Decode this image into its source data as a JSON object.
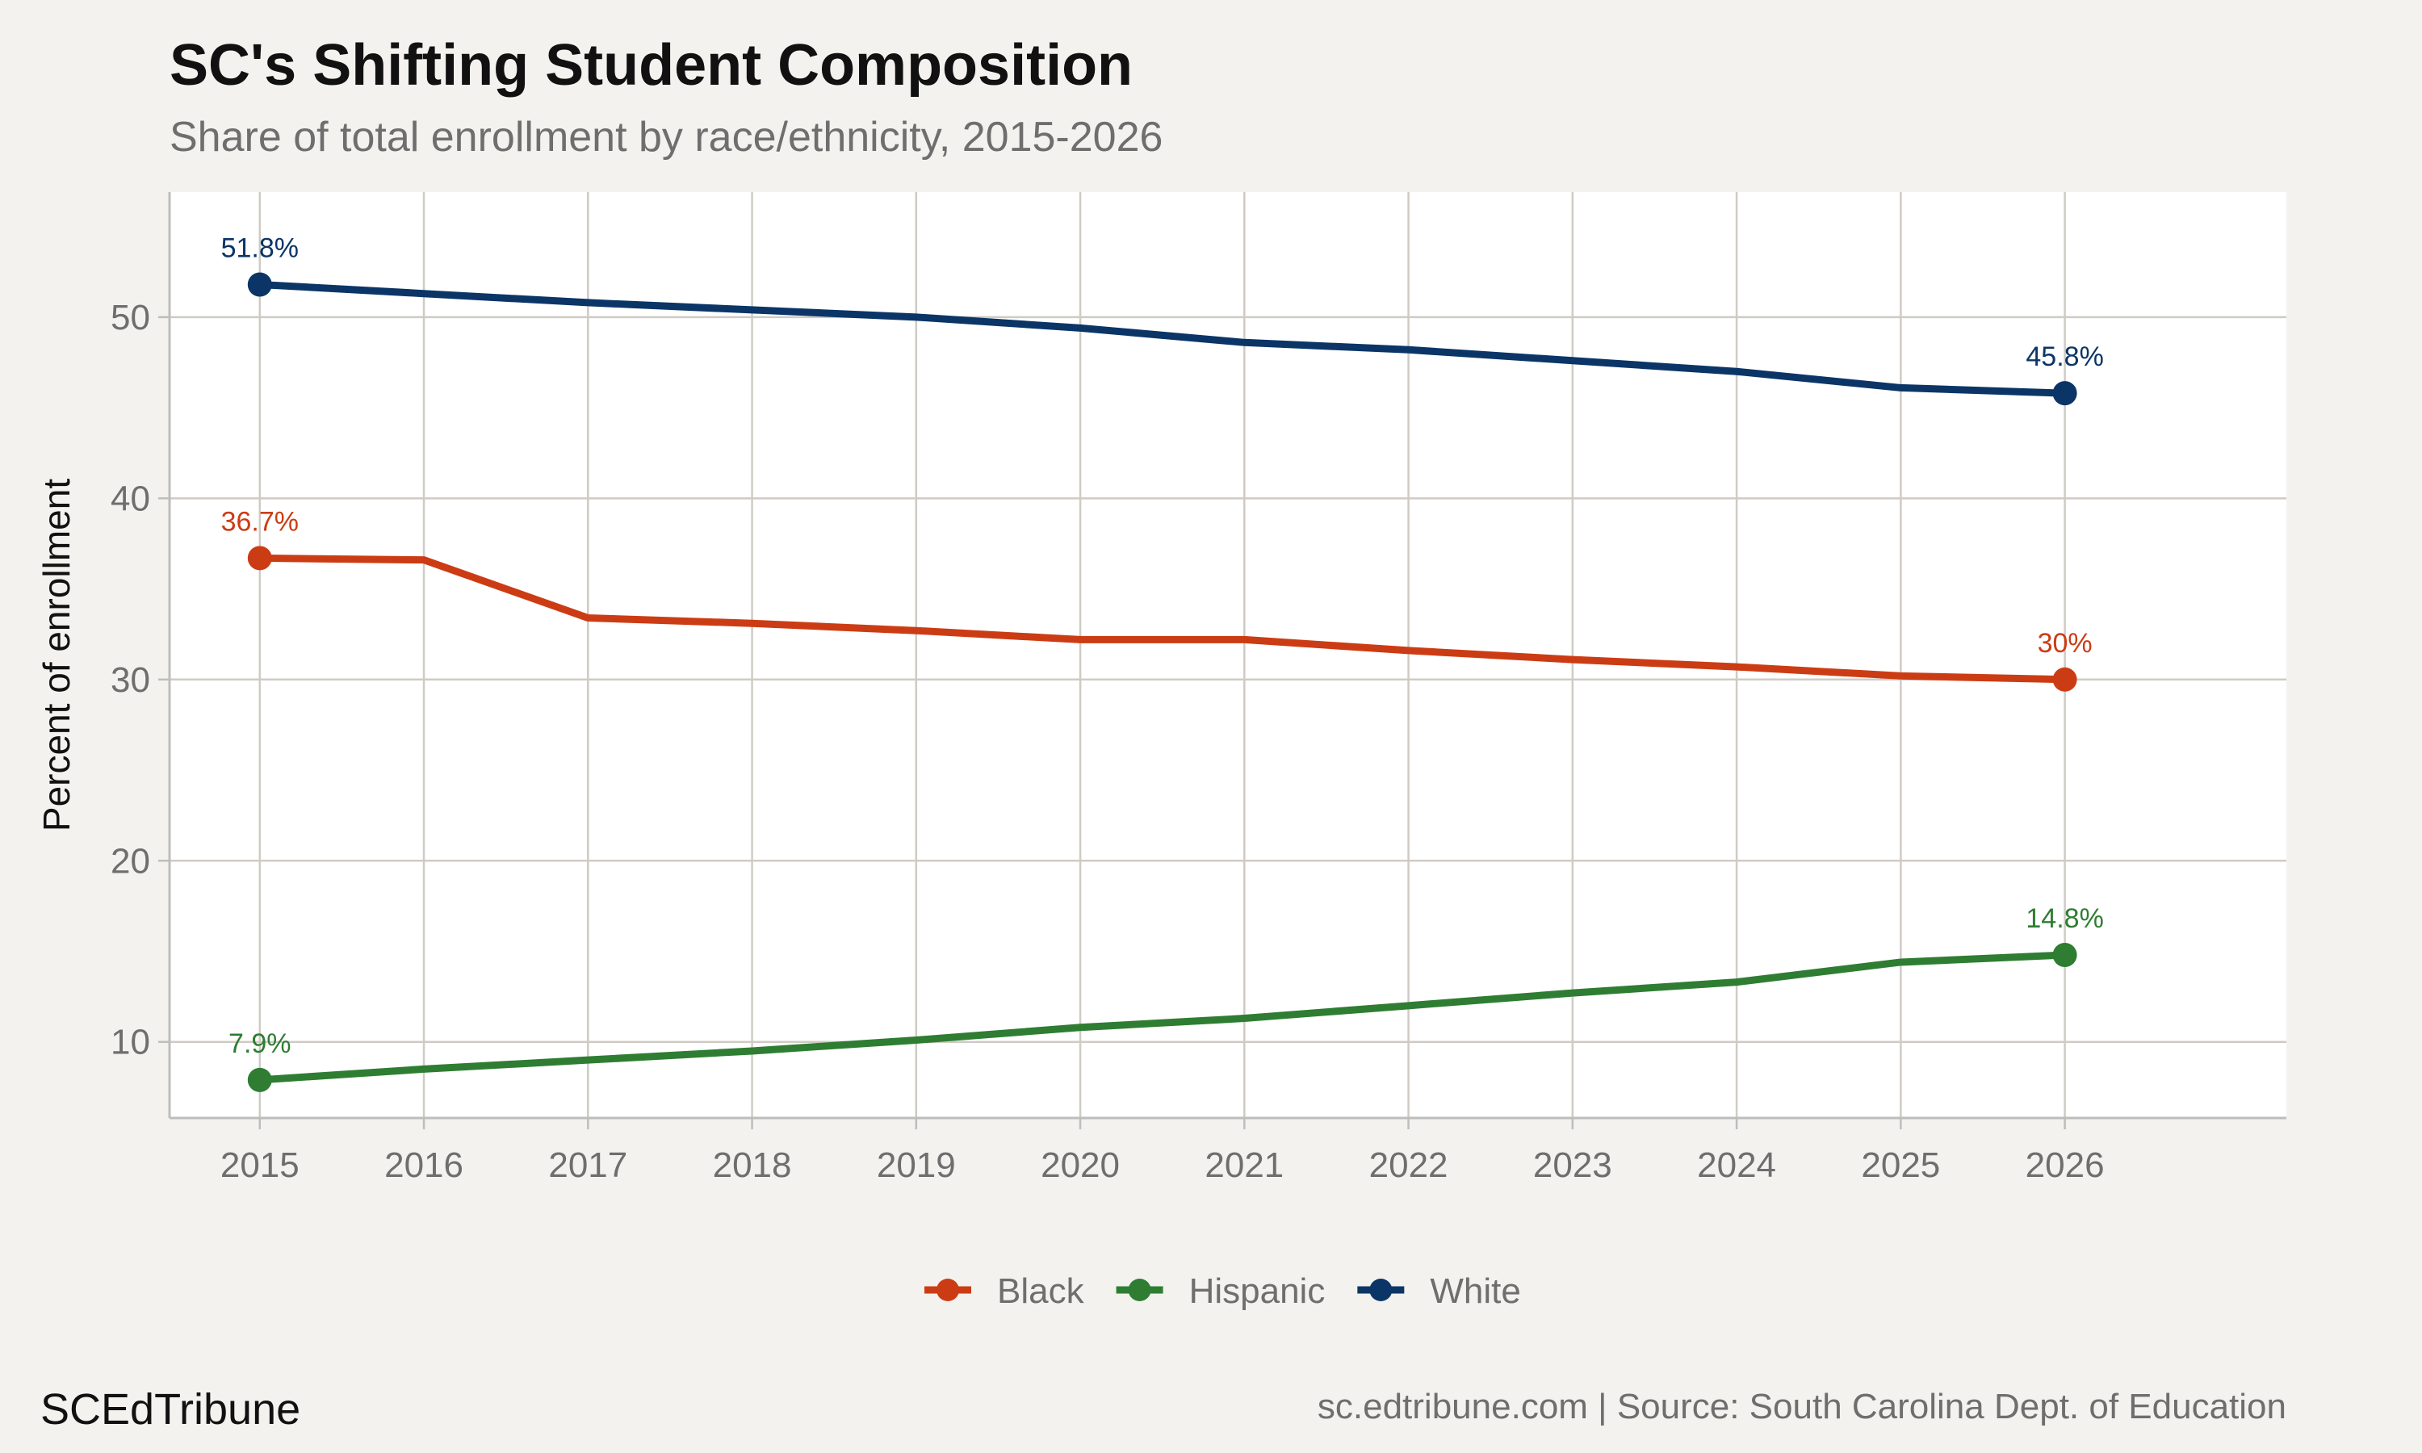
{
  "title": "SC's Shifting Student Composition",
  "subtitle": "Share of total enrollment by race/ethnicity, 2015-2026",
  "footer": {
    "brand": "SCEdTribune",
    "source": "sc.edtribune.com | Source: South Carolina Dept. of Education"
  },
  "chart_data": {
    "type": "line",
    "title": "SC's Shifting Student Composition",
    "subtitle": "Share of total enrollment by race/ethnicity, 2015-2026",
    "xlabel": "",
    "ylabel": "Percent of enrollment",
    "x": [
      2015,
      2016,
      2017,
      2018,
      2019,
      2020,
      2021,
      2022,
      2023,
      2024,
      2025,
      2026
    ],
    "xlim": [
      2014.45,
      2027.35
    ],
    "ylim": [
      5.8,
      56.9
    ],
    "yticks": [
      10,
      20,
      30,
      40,
      50
    ],
    "grid": true,
    "legend_position": "bottom",
    "series": [
      {
        "name": "Black",
        "color": "#cc3c14",
        "values": [
          36.7,
          36.6,
          33.4,
          33.1,
          32.7,
          32.2,
          32.2,
          31.6,
          31.1,
          30.7,
          30.2,
          30.0
        ],
        "endpoint_labels": [
          "36.7%",
          "30%"
        ]
      },
      {
        "name": "Hispanic",
        "color": "#2e7d32",
        "values": [
          7.9,
          8.5,
          9.0,
          9.5,
          10.1,
          10.8,
          11.3,
          12.0,
          12.7,
          13.3,
          14.4,
          14.8
        ],
        "endpoint_labels": [
          "7.9%",
          "14.8%"
        ]
      },
      {
        "name": "White",
        "color": "#0b3566",
        "values": [
          51.8,
          51.3,
          50.8,
          50.4,
          50.0,
          49.4,
          48.6,
          48.2,
          47.6,
          47.0,
          46.1,
          45.8
        ],
        "endpoint_labels": [
          "51.8%",
          "45.8%"
        ]
      }
    ]
  }
}
